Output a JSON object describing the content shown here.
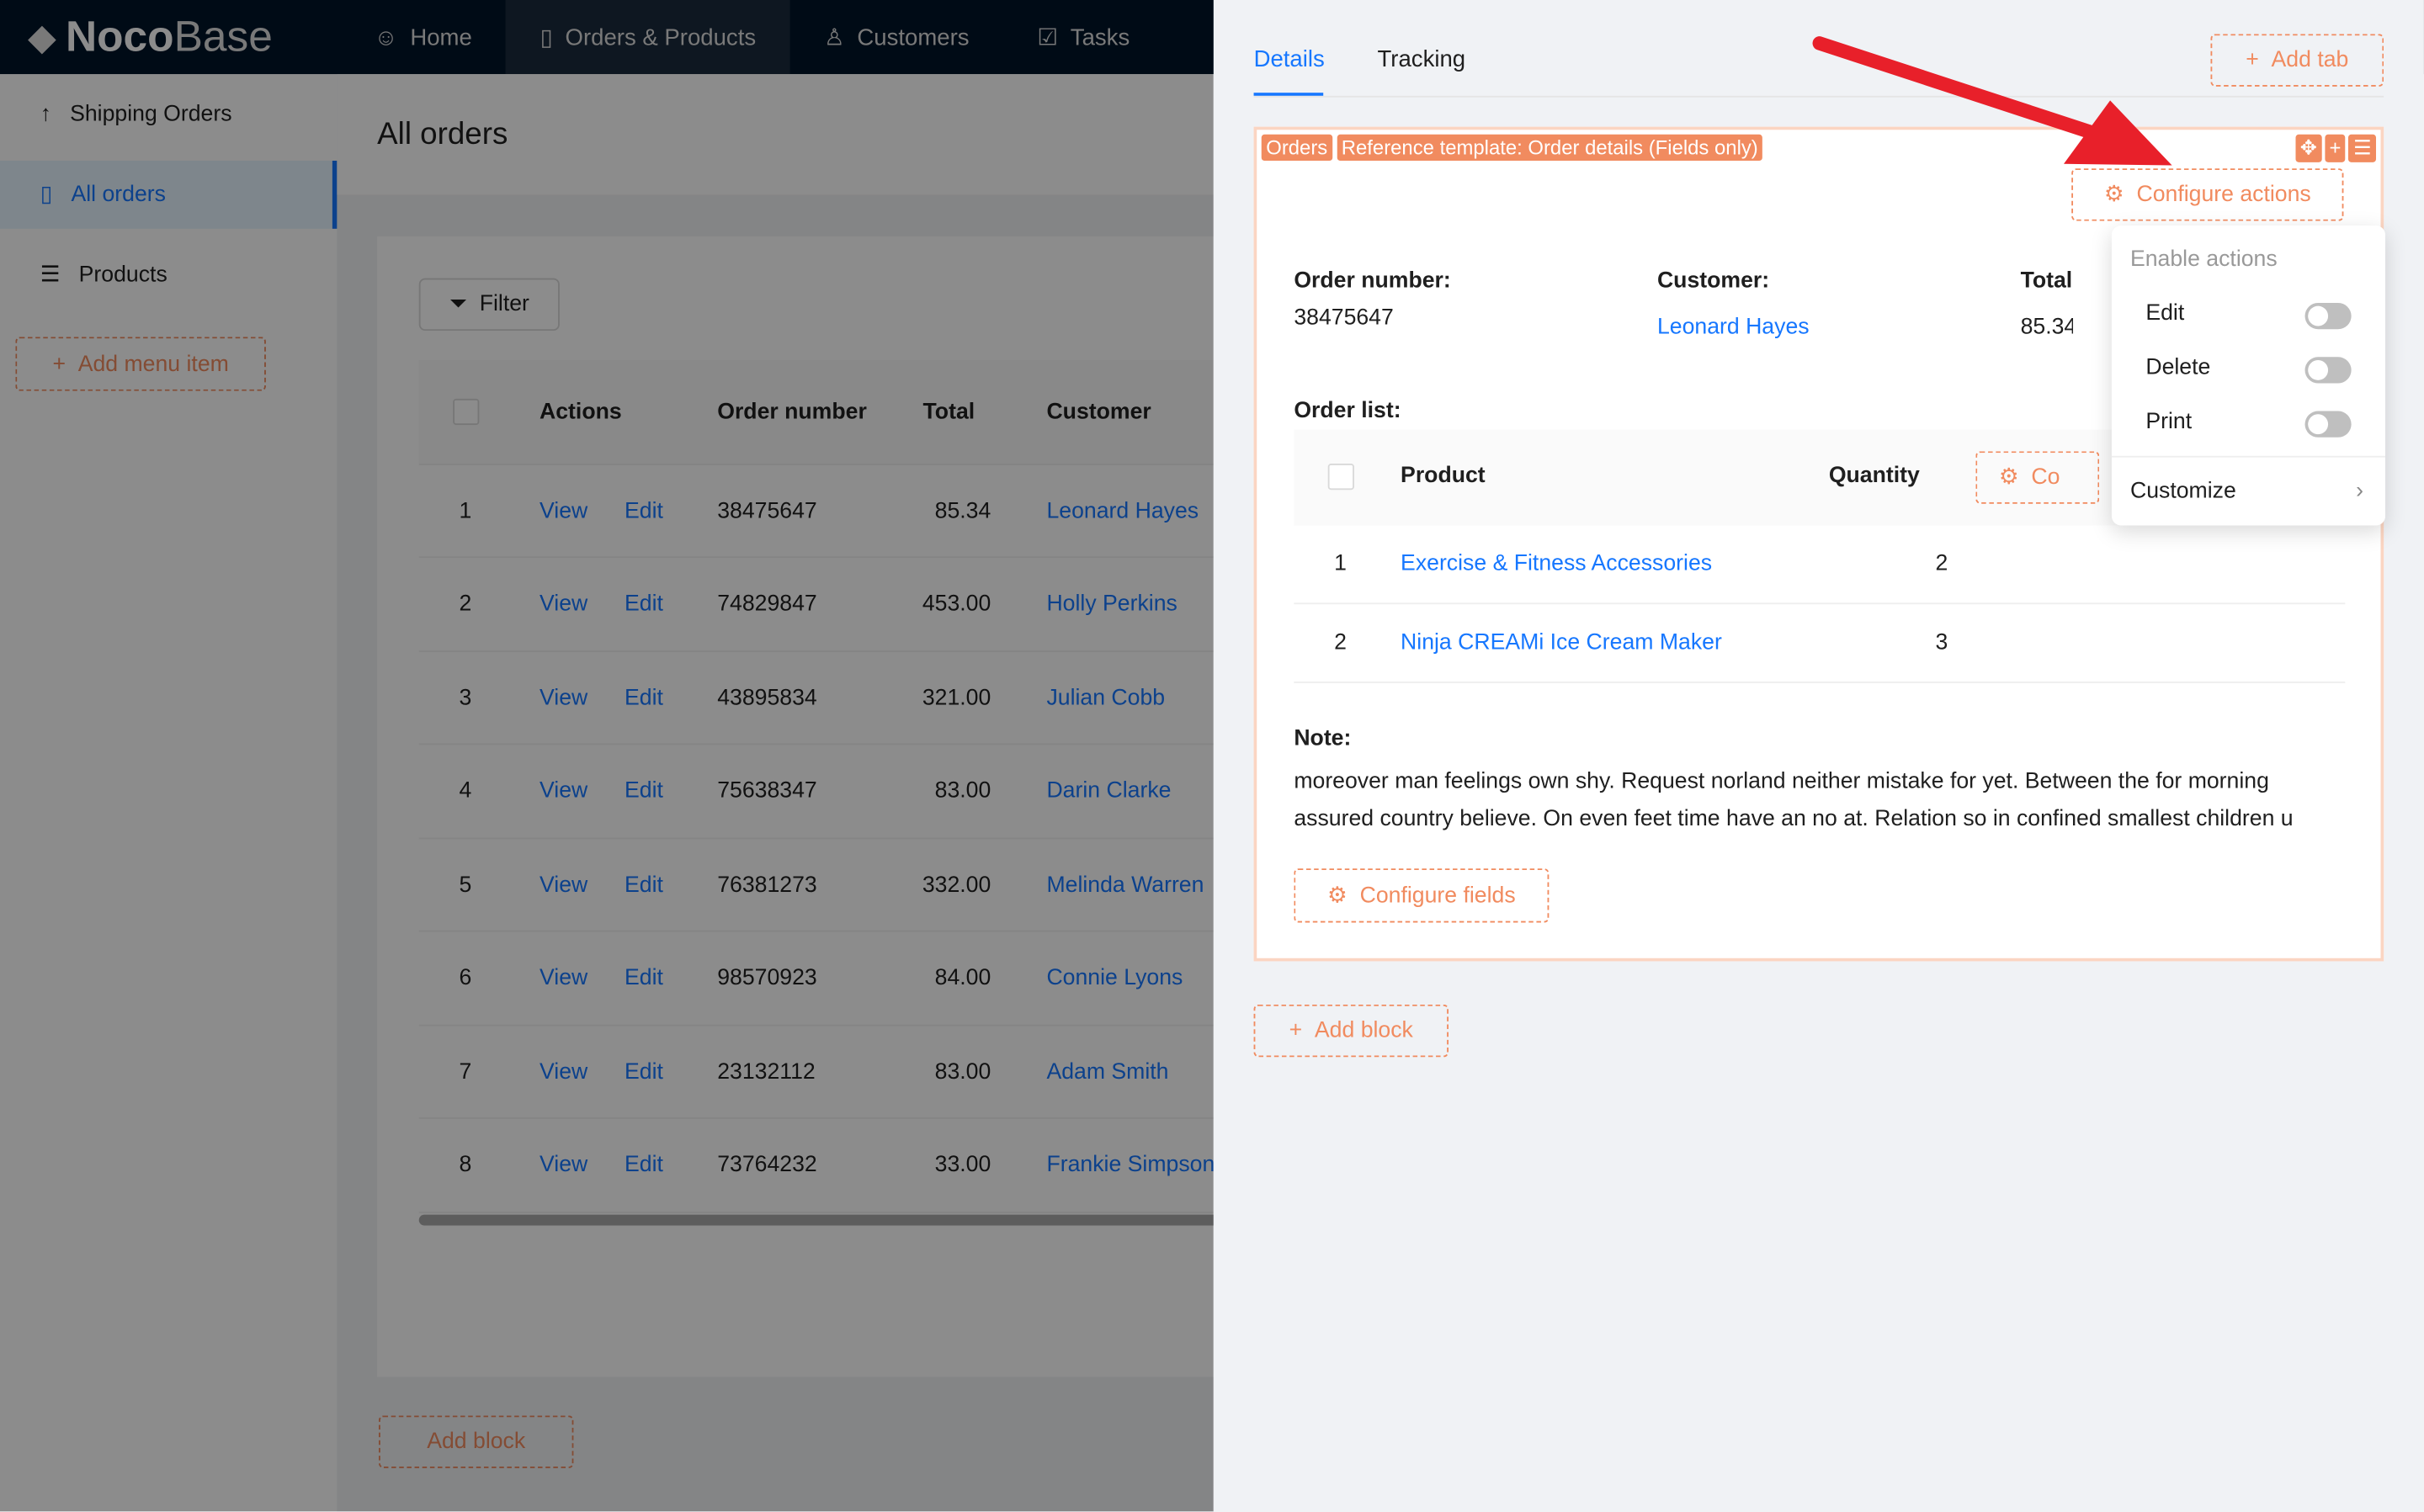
{
  "app": {
    "logo": "NocoBase",
    "logo_bold": "Noco",
    "logo_light": "Base"
  },
  "nav": [
    {
      "label": "Home",
      "icon": "smile-icon"
    },
    {
      "label": "Orders & Products",
      "icon": "file-check-icon",
      "active": true
    },
    {
      "label": "Customers",
      "icon": "users-icon"
    },
    {
      "label": "Tasks",
      "icon": "checkbox-icon"
    }
  ],
  "sidebar": {
    "items": [
      {
        "label": "Shipping Orders",
        "icon": "arrow-up-icon"
      },
      {
        "label": "All orders",
        "icon": "file-check-icon",
        "active": true
      },
      {
        "label": "Products",
        "icon": "list-icon"
      }
    ],
    "add_label": "Add menu item"
  },
  "page": {
    "title": "All orders",
    "filter_label": "Filter",
    "add_label": "Add block",
    "columns": [
      "Actions",
      "Order number",
      "Total",
      "Customer"
    ],
    "rows": [
      {
        "n": "1",
        "view": "View",
        "edit": "Edit",
        "order": "38475647",
        "total": "85.34",
        "customer": "Leonard Hayes"
      },
      {
        "n": "2",
        "view": "View",
        "edit": "Edit",
        "order": "74829847",
        "total": "453.00",
        "customer": "Holly Perkins"
      },
      {
        "n": "3",
        "view": "View",
        "edit": "Edit",
        "order": "43895834",
        "total": "321.00",
        "customer": "Julian Cobb"
      },
      {
        "n": "4",
        "view": "View",
        "edit": "Edit",
        "order": "75638347",
        "total": "83.00",
        "customer": "Darin Clarke"
      },
      {
        "n": "5",
        "view": "View",
        "edit": "Edit",
        "order": "76381273",
        "total": "332.00",
        "customer": "Melinda Warren"
      },
      {
        "n": "6",
        "view": "View",
        "edit": "Edit",
        "order": "98570923",
        "total": "84.00",
        "customer": "Connie Lyons"
      },
      {
        "n": "7",
        "view": "View",
        "edit": "Edit",
        "order": "23132112",
        "total": "83.00",
        "customer": "Adam Smith"
      },
      {
        "n": "8",
        "view": "View",
        "edit": "Edit",
        "order": "73764232",
        "total": "33.00",
        "customer": "Frankie Simpson"
      }
    ]
  },
  "drawer": {
    "tabs": [
      "Details",
      "Tracking"
    ],
    "add_tab": "Add tab",
    "tags": [
      "Orders",
      "Reference template: Order details (Fields only)"
    ],
    "configure_actions": "Configure actions",
    "fields": {
      "order_label": "Order number:",
      "order_value": "38475647",
      "customer_label": "Customer:",
      "customer_value": "Leonard Hayes",
      "total_label": "Total",
      "total_value": "85.34",
      "order_list_label": "Order list:",
      "note_label": "Note:",
      "note_value": "moreover man feelings own shy. Request norland neither mistake for yet. Between the for morning assured country believe. On even feet time have an no at. Relation so in confined smallest children u"
    },
    "sub_columns": [
      "Product",
      "Quantity"
    ],
    "sub_configure": "Co",
    "sub_rows": [
      {
        "n": "1",
        "product": "Exercise & Fitness Accessories",
        "qty": "2"
      },
      {
        "n": "2",
        "product": "Ninja CREAMi Ice Cream Maker",
        "qty": "3"
      }
    ],
    "configure_fields": "Configure fields",
    "add_block": "Add block",
    "menu": {
      "header": "Enable actions",
      "items": [
        {
          "label": "Edit",
          "enabled": false
        },
        {
          "label": "Delete",
          "enabled": false
        },
        {
          "label": "Print",
          "enabled": false
        }
      ],
      "customize": "Customize"
    },
    "accent": "#f18b5f",
    "link": "#1677ff",
    "arrow": "#e8202a"
  }
}
